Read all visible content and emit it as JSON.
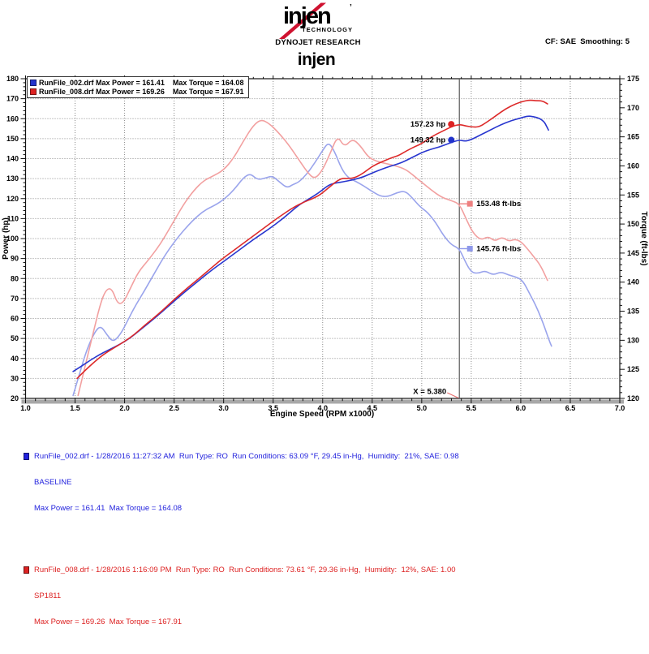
{
  "header": {
    "logo_brand": "injen",
    "logo_mark": "’",
    "logo_sub": "TECHNOLOGY",
    "research_line": "DYNOJET RESEARCH",
    "correction_info": "CF: SAE  Smoothing: 5",
    "chart_title": "injen"
  },
  "legend": {
    "rows": [
      {
        "color": "#2233cc",
        "text": "RunFile_002.drf Max Power = 161.41    Max Torque = 164.08"
      },
      {
        "color": "#dd2222",
        "text": "RunFile_008.drf Max Power = 169.26    Max Torque = 167.91"
      }
    ]
  },
  "chart_data": {
    "type": "line",
    "title": "injen",
    "xlabel": "Engine Speed (RPM x1000)",
    "ylabel_left": "Power (hp)",
    "ylabel_right": "Torque (ft-lbs)",
    "xlim": [
      1.0,
      7.0
    ],
    "ylim_left": [
      20,
      180
    ],
    "ylim_right": [
      120,
      175
    ],
    "x_major_step": 0.5,
    "x_minor_step": 0.1,
    "y_left_major_step": 10,
    "y_left_minor_step": 2,
    "y_right_major_step": 5,
    "y_right_minor_step": 1,
    "grid": "dotted",
    "legend_position": "top-left",
    "cursor": {
      "x": 5.38,
      "label": "X = 5.380"
    },
    "series": [
      {
        "name": "runfile-002-torque",
        "legend": "RunFile_002 Torque",
        "axis": "right",
        "color": "#9aa4ec",
        "points": [
          [
            1.48,
            120.5
          ],
          [
            1.55,
            124.5
          ],
          [
            1.62,
            128.5
          ],
          [
            1.7,
            131.5
          ],
          [
            1.76,
            132.5
          ],
          [
            1.82,
            131
          ],
          [
            1.88,
            129.7
          ],
          [
            1.95,
            130.8
          ],
          [
            2.02,
            133
          ],
          [
            2.1,
            135.7
          ],
          [
            2.2,
            138.5
          ],
          [
            2.3,
            141.5
          ],
          [
            2.42,
            145
          ],
          [
            2.55,
            148
          ],
          [
            2.68,
            150.5
          ],
          [
            2.8,
            152.3
          ],
          [
            2.92,
            153.3
          ],
          [
            3.0,
            154.2
          ],
          [
            3.1,
            155.8
          ],
          [
            3.2,
            158
          ],
          [
            3.27,
            158.7
          ],
          [
            3.34,
            157.6
          ],
          [
            3.42,
            157.9
          ],
          [
            3.49,
            158.3
          ],
          [
            3.56,
            157.3
          ],
          [
            3.64,
            156.2
          ],
          [
            3.7,
            156.8
          ],
          [
            3.76,
            157.2
          ],
          [
            3.84,
            158.6
          ],
          [
            3.92,
            160.5
          ],
          [
            4.0,
            162.7
          ],
          [
            4.06,
            164.1
          ],
          [
            4.12,
            162.5
          ],
          [
            4.19,
            159.5
          ],
          [
            4.26,
            157.9
          ],
          [
            4.34,
            157.3
          ],
          [
            4.42,
            156.5
          ],
          [
            4.5,
            155.6
          ],
          [
            4.58,
            154.8
          ],
          [
            4.66,
            154.7
          ],
          [
            4.75,
            155.4
          ],
          [
            4.83,
            155.7
          ],
          [
            4.9,
            154.6
          ],
          [
            4.98,
            153
          ],
          [
            5.06,
            152
          ],
          [
            5.14,
            150.3
          ],
          [
            5.22,
            148
          ],
          [
            5.3,
            146.4
          ],
          [
            5.38,
            145.8
          ],
          [
            5.44,
            143.5
          ],
          [
            5.5,
            141.7
          ],
          [
            5.57,
            141.5
          ],
          [
            5.64,
            142
          ],
          [
            5.72,
            141.2
          ],
          [
            5.8,
            141.8
          ],
          [
            5.88,
            141.2
          ],
          [
            5.95,
            140.9
          ],
          [
            6.02,
            140.3
          ],
          [
            6.09,
            138
          ],
          [
            6.16,
            135.7
          ],
          [
            6.23,
            132.8
          ],
          [
            6.28,
            130.3
          ],
          [
            6.31,
            129
          ]
        ]
      },
      {
        "name": "runfile-008-torque",
        "legend": "RunFile_008 Torque",
        "axis": "right",
        "color": "#f2a0a0",
        "points": [
          [
            1.53,
            120.5
          ],
          [
            1.6,
            125.5
          ],
          [
            1.68,
            131
          ],
          [
            1.75,
            136
          ],
          [
            1.81,
            138.7
          ],
          [
            1.87,
            139
          ],
          [
            1.93,
            136.2
          ],
          [
            1.99,
            136.5
          ],
          [
            2.06,
            139
          ],
          [
            2.14,
            141.8
          ],
          [
            2.24,
            143.8
          ],
          [
            2.36,
            146.5
          ],
          [
            2.48,
            150
          ],
          [
            2.6,
            153.5
          ],
          [
            2.7,
            155.8
          ],
          [
            2.8,
            157.5
          ],
          [
            2.9,
            158.3
          ],
          [
            3.0,
            159.3
          ],
          [
            3.1,
            161.3
          ],
          [
            3.2,
            164.3
          ],
          [
            3.3,
            167
          ],
          [
            3.38,
            168
          ],
          [
            3.46,
            167.3
          ],
          [
            3.55,
            165.8
          ],
          [
            3.65,
            163.8
          ],
          [
            3.75,
            161.3
          ],
          [
            3.85,
            158.8
          ],
          [
            3.92,
            157.7
          ],
          [
            4.0,
            159.3
          ],
          [
            4.08,
            162.3
          ],
          [
            4.15,
            165.2
          ],
          [
            4.22,
            163.2
          ],
          [
            4.3,
            164.7
          ],
          [
            4.38,
            163.5
          ],
          [
            4.46,
            161.5
          ],
          [
            4.54,
            160.8
          ],
          [
            4.64,
            160.4
          ],
          [
            4.74,
            160
          ],
          [
            4.84,
            159.4
          ],
          [
            4.92,
            158.3
          ],
          [
            5.0,
            157.2
          ],
          [
            5.1,
            155.8
          ],
          [
            5.2,
            154.6
          ],
          [
            5.3,
            154
          ],
          [
            5.38,
            153.5
          ],
          [
            5.45,
            150.8
          ],
          [
            5.52,
            148.4
          ],
          [
            5.6,
            147.2
          ],
          [
            5.67,
            147.9
          ],
          [
            5.74,
            147
          ],
          [
            5.81,
            147.8
          ],
          [
            5.88,
            147
          ],
          [
            5.94,
            147.4
          ],
          [
            6.0,
            147
          ],
          [
            6.06,
            145.9
          ],
          [
            6.13,
            144.4
          ],
          [
            6.2,
            142.9
          ],
          [
            6.27,
            140.3
          ]
        ]
      },
      {
        "name": "runfile-002-power",
        "legend": "RunFile_002 Power",
        "axis": "left",
        "color": "#2836cf",
        "points": [
          [
            1.48,
            33.5
          ],
          [
            1.56,
            36
          ],
          [
            1.65,
            39
          ],
          [
            1.75,
            42
          ],
          [
            1.85,
            44.5
          ],
          [
            1.95,
            47
          ],
          [
            2.05,
            50
          ],
          [
            2.15,
            54
          ],
          [
            2.3,
            60
          ],
          [
            2.45,
            66.5
          ],
          [
            2.6,
            73
          ],
          [
            2.75,
            79
          ],
          [
            2.9,
            85
          ],
          [
            3.0,
            88.5
          ],
          [
            3.15,
            94
          ],
          [
            3.3,
            99.5
          ],
          [
            3.45,
            104.5
          ],
          [
            3.6,
            110
          ],
          [
            3.75,
            116.5
          ],
          [
            3.85,
            119.5
          ],
          [
            3.95,
            122.5
          ],
          [
            4.05,
            126.5
          ],
          [
            4.12,
            127.8
          ],
          [
            4.2,
            128.3
          ],
          [
            4.33,
            129.7
          ],
          [
            4.42,
            131
          ],
          [
            4.5,
            132.8
          ],
          [
            4.6,
            134.8
          ],
          [
            4.68,
            136.2
          ],
          [
            4.76,
            137.3
          ],
          [
            4.84,
            139
          ],
          [
            4.92,
            141
          ],
          [
            5.0,
            143
          ],
          [
            5.08,
            144.5
          ],
          [
            5.17,
            145.7
          ],
          [
            5.25,
            147.2
          ],
          [
            5.32,
            148.5
          ],
          [
            5.38,
            149.3
          ],
          [
            5.44,
            148.7
          ],
          [
            5.5,
            149.5
          ],
          [
            5.6,
            152
          ],
          [
            5.7,
            154.5
          ],
          [
            5.8,
            157
          ],
          [
            5.9,
            159
          ],
          [
            6.0,
            160.3
          ],
          [
            6.07,
            161.4
          ],
          [
            6.13,
            161
          ],
          [
            6.19,
            160.2
          ],
          [
            6.24,
            158.3
          ],
          [
            6.26,
            156.2
          ],
          [
            6.28,
            154.3
          ]
        ]
      },
      {
        "name": "runfile-008-power",
        "legend": "RunFile_008 Power",
        "axis": "left",
        "color": "#dd2a2a",
        "points": [
          [
            1.52,
            30
          ],
          [
            1.6,
            34
          ],
          [
            1.7,
            38.5
          ],
          [
            1.8,
            42.5
          ],
          [
            1.9,
            45.5
          ],
          [
            2.0,
            48.5
          ],
          [
            2.1,
            52
          ],
          [
            2.2,
            56.5
          ],
          [
            2.35,
            62.5
          ],
          [
            2.5,
            69.5
          ],
          [
            2.65,
            76
          ],
          [
            2.8,
            82
          ],
          [
            2.95,
            88.5
          ],
          [
            3.1,
            94
          ],
          [
            3.25,
            99.5
          ],
          [
            3.4,
            105
          ],
          [
            3.55,
            110.5
          ],
          [
            3.7,
            115.5
          ],
          [
            3.82,
            118.5
          ],
          [
            3.95,
            121
          ],
          [
            4.05,
            125
          ],
          [
            4.18,
            130.3
          ],
          [
            4.26,
            130
          ],
          [
            4.33,
            130.5
          ],
          [
            4.42,
            133
          ],
          [
            4.5,
            136.2
          ],
          [
            4.6,
            138.5
          ],
          [
            4.7,
            140.5
          ],
          [
            4.77,
            141.6
          ],
          [
            4.85,
            144
          ],
          [
            4.93,
            146
          ],
          [
            5.0,
            147.5
          ],
          [
            5.1,
            151
          ],
          [
            5.2,
            153.5
          ],
          [
            5.3,
            156
          ],
          [
            5.38,
            157.2
          ],
          [
            5.45,
            156.3
          ],
          [
            5.52,
            155.8
          ],
          [
            5.58,
            155.9
          ],
          [
            5.65,
            158
          ],
          [
            5.75,
            161.5
          ],
          [
            5.85,
            165
          ],
          [
            5.95,
            167.5
          ],
          [
            6.03,
            168.8
          ],
          [
            6.09,
            169.3
          ],
          [
            6.15,
            169
          ],
          [
            6.22,
            168.9
          ],
          [
            6.27,
            167.4
          ]
        ]
      }
    ],
    "callouts": [
      {
        "text": "157.23 hp",
        "rpm": 5.38,
        "value": 157.23,
        "axis": "left",
        "marker": "circle",
        "color": "#dd2222",
        "side": "left"
      },
      {
        "text": "149.32 hp",
        "rpm": 5.38,
        "value": 149.32,
        "axis": "left",
        "marker": "circle",
        "color": "#2233cc",
        "side": "left"
      },
      {
        "text": "153.48 ft-lbs",
        "rpm": 5.38,
        "value": 153.48,
        "axis": "right",
        "marker": "square",
        "color": "#ee8080",
        "side": "right"
      },
      {
        "text": "145.76 ft-lbs",
        "rpm": 5.38,
        "value": 145.76,
        "axis": "right",
        "marker": "square",
        "color": "#8e98ea",
        "side": "right"
      }
    ]
  },
  "footer": {
    "runs": [
      {
        "color": "#2222dd",
        "line1": "RunFile_002.drf - 1/28/2016 11:27:32 AM  Run Type: RO  Run Conditions: 63.09 °F, 29.45 in-Hg,  Humidity:  21%, SAE: 0.98",
        "line2": "BASELINE",
        "line3": "Max Power = 161.41  Max Torque = 164.08"
      },
      {
        "color": "#dd2222",
        "line1": "RunFile_008.drf - 1/28/2016 1:16:09 PM  Run Type: RO  Run Conditions: 73.61 °F, 29.36 in-Hg,  Humidity:  12%, SAE: 1.00",
        "line2": "SP1811",
        "line3": "Max Power = 169.26  Max Torque = 167.91"
      }
    ]
  }
}
